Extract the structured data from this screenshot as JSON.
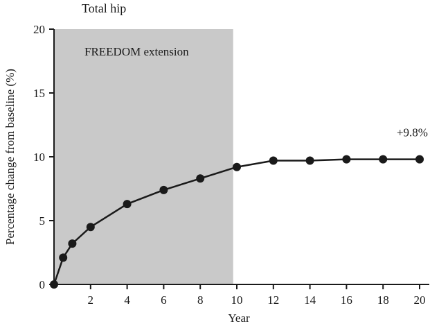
{
  "chart_data": {
    "type": "line",
    "title": "Total hip",
    "xlabel": "Year",
    "ylabel": "Percentage change from baseline (%)",
    "xlim": [
      0,
      20
    ],
    "ylim": [
      0,
      20
    ],
    "x_ticks": [
      2,
      4,
      6,
      8,
      10,
      12,
      14,
      16,
      18,
      20
    ],
    "y_ticks": [
      0,
      5,
      10,
      15,
      20
    ],
    "grid": "off",
    "axis_color": "#1a1a1a",
    "region": {
      "label": "FREEDOM extension",
      "x_start": 0,
      "x_end": 9.8,
      "color": "#c9c9c9"
    },
    "annotation": {
      "text": "+9.8%",
      "x": 19.6,
      "y": 11.6
    },
    "series": [
      {
        "name": "Total hip",
        "color": "#1a1a1a",
        "x": [
          0,
          0.5,
          1,
          2,
          4,
          6,
          8,
          10,
          12,
          14,
          16,
          18,
          20
        ],
        "y": [
          0,
          2.1,
          3.2,
          4.5,
          6.3,
          7.4,
          8.3,
          9.2,
          9.7,
          9.7,
          9.8,
          9.8,
          9.8
        ]
      }
    ]
  }
}
